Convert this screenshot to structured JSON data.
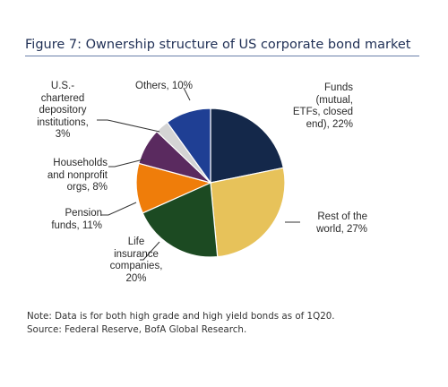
{
  "figure": {
    "title": "Figure 7: Ownership structure of US corporate bond market",
    "note_line1": "Note: Data is for both high grade and high yield bonds as of 1Q20.",
    "note_line2": "Source: Federal Reserve, BofA Global Research."
  },
  "chart_data": {
    "type": "pie",
    "title": "Figure 7: Ownership structure of US corporate bond market",
    "slices": [
      {
        "label": "Funds (mutual, ETFs, closed end), 22%",
        "category": "Funds (mutual, ETFs, closed end)",
        "value": 22,
        "color": "#14284a"
      },
      {
        "label": "Rest of the world, 27%",
        "category": "Rest of the world",
        "value": 27,
        "color": "#e7c25a"
      },
      {
        "label": "Life insurance companies, 20%",
        "category": "Life insurance companies",
        "value": 20,
        "color": "#1c4a22"
      },
      {
        "label": "Pension funds, 11%",
        "category": "Pension funds",
        "value": 11,
        "color": "#ef7d0a"
      },
      {
        "label": "Households and nonprofit orgs, 8%",
        "category": "Households and nonprofit orgs",
        "value": 8,
        "color": "#5a2a5f"
      },
      {
        "label": "U.S.-chartered depository institutions, 3%",
        "category": "U.S.-chartered depository institutions",
        "value": 3,
        "color": "#d4d4d4"
      },
      {
        "label": "Others, 10%",
        "category": "Others",
        "value": 10,
        "color": "#1f3f94"
      }
    ]
  },
  "labels": {
    "funds": "Funds\n(mutual,\nETFs, closed\nend), 22%",
    "rest_of_world": "Rest of the\nworld, 27%",
    "life_insurance": "Life\ninsurance\ncompanies,\n20%",
    "pension": "Pension\nfunds, 11%",
    "households": "Households\nand nonprofit\norgs, 8%",
    "depository": "U.S.-\nchartered\ndepository\ninstitutions,\n3%",
    "others": "Others, 10%"
  }
}
